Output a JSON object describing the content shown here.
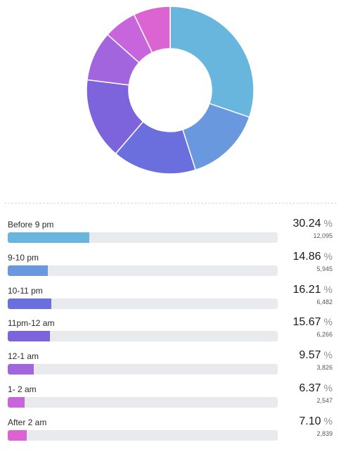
{
  "chart_data": {
    "type": "pie",
    "categories": [
      "Before 9 pm",
      "9-10 pm",
      "10-11 pm",
      "11pm-12 am",
      "12-1 am",
      "1- 2 am",
      "After 2 am"
    ],
    "values": [
      30.24,
      14.86,
      16.21,
      15.67,
      9.57,
      6.37,
      7.1
    ],
    "counts": [
      "12,095",
      "5,945",
      "6,482",
      "6,266",
      "3,826",
      "2,547",
      "2,839"
    ],
    "colors": [
      "#68b5dd",
      "#6a98de",
      "#6a6fdd",
      "#7d63dc",
      "#a365dd",
      "#c864dc",
      "#db64d2"
    ],
    "unit": "%",
    "donut": true
  }
}
